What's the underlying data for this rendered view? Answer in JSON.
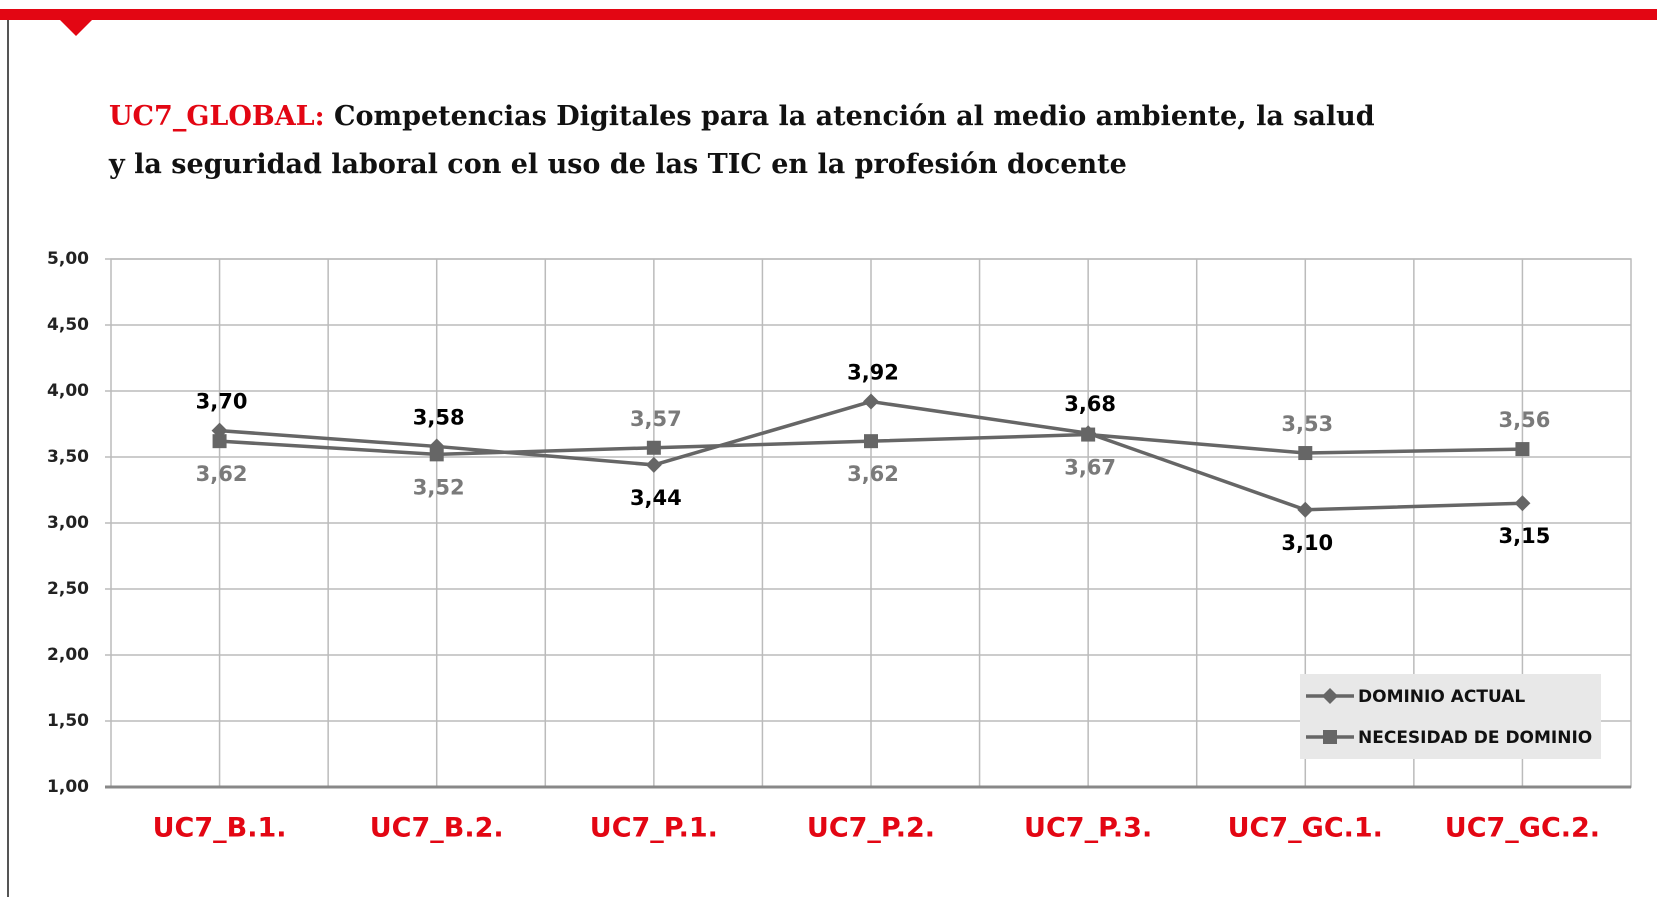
{
  "chart_data": {
    "type": "line",
    "title_label": "UC7_GLOBAL:",
    "title": [
      "Competencias Digitales para la atención al medio ambiente, la salud",
      "y la seguridad laboral con el uso de las TIC en la profesión docente"
    ],
    "categories": [
      "UC7_B.1.",
      "UC7_B.2.",
      "UC7_P.1.",
      "UC7_P.2.",
      "UC7_P.3.",
      "UC7_GC.1.",
      "UC7_GC.2."
    ],
    "series": [
      {
        "name": "DOMINIO ACTUAL",
        "color": "#666666",
        "marker": "diamond",
        "label_color": "#000000",
        "values": [
          3.7,
          3.58,
          3.44,
          3.92,
          3.68,
          3.1,
          3.15
        ],
        "value_labels": [
          "3,70",
          "3,58",
          "3,44",
          "3,92",
          "3,68",
          "3,10",
          "3,15"
        ]
      },
      {
        "name": "NECESIDAD DE DOMINIO",
        "color": "#666666",
        "marker": "square",
        "label_color": "#7a7a7a",
        "values": [
          3.62,
          3.52,
          3.57,
          3.62,
          3.67,
          3.53,
          3.56
        ],
        "value_labels": [
          "3,62",
          "3,52",
          "3,57",
          "3,62",
          "3,67",
          "3,53",
          "3,56"
        ]
      }
    ],
    "ylim": [
      1,
      5
    ],
    "yticks": [
      {
        "value": 1,
        "label": "1,00"
      },
      {
        "value": 1.5,
        "label": "1,50"
      },
      {
        "value": 2,
        "label": "2,00"
      },
      {
        "value": 2.5,
        "label": "2,50"
      },
      {
        "value": 3,
        "label": "3,00"
      },
      {
        "value": 3.5,
        "label": "3,50"
      },
      {
        "value": 4,
        "label": "4,00"
      },
      {
        "value": 4.5,
        "label": "4,50"
      },
      {
        "value": 5,
        "label": "5,00"
      }
    ],
    "grid": true,
    "legend": "lower right"
  }
}
